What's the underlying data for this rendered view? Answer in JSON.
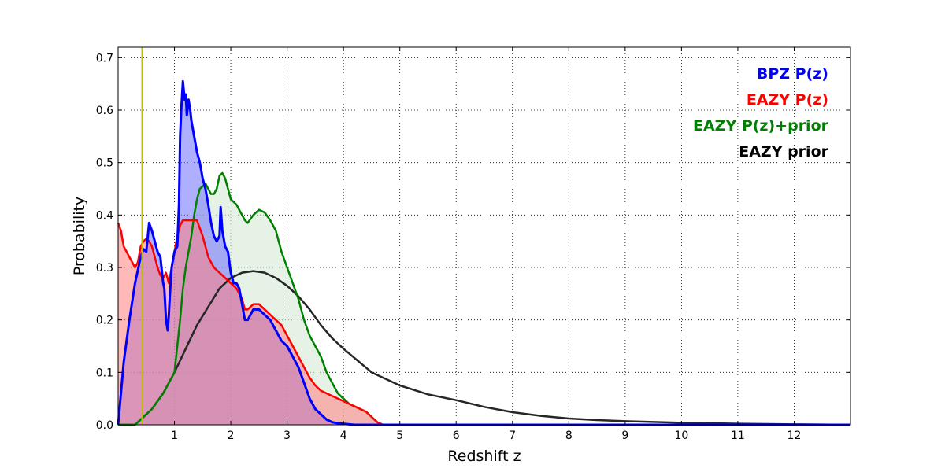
{
  "chart_data": {
    "type": "area",
    "title": "",
    "xlabel": "Redshift z",
    "ylabel": "Probability",
    "xlim": [
      0,
      13
    ],
    "ylim": [
      0,
      0.72
    ],
    "grid": true,
    "legend_position": "top-right",
    "x_ticks": [
      1,
      2,
      3,
      4,
      5,
      6,
      7,
      8,
      9,
      10,
      11,
      12
    ],
    "y_ticks": [
      0.0,
      0.1,
      0.2,
      0.3,
      0.4,
      0.5,
      0.6,
      0.7
    ],
    "y_tick_labels": [
      "0.0",
      "0.1",
      "0.2",
      "0.3",
      "0.4",
      "0.5",
      "0.6",
      "0.7"
    ],
    "vline": {
      "x": 0.43,
      "color": "#bfbf00"
    },
    "series": [
      {
        "name": "BPZ P(z)",
        "color": "#0000ff",
        "fill": "#6e6eff",
        "filled": true,
        "x": [
          0,
          0.05,
          0.1,
          0.2,
          0.3,
          0.4,
          0.45,
          0.5,
          0.55,
          0.6,
          0.65,
          0.7,
          0.75,
          0.8,
          0.82,
          0.85,
          0.88,
          0.9,
          0.92,
          0.95,
          1.0,
          1.05,
          1.08,
          1.1,
          1.12,
          1.15,
          1.18,
          1.2,
          1.22,
          1.25,
          1.28,
          1.3,
          1.35,
          1.4,
          1.45,
          1.5,
          1.55,
          1.6,
          1.65,
          1.7,
          1.75,
          1.8,
          1.82,
          1.85,
          1.9,
          1.95,
          2.0,
          2.05,
          2.1,
          2.15,
          2.2,
          2.25,
          2.3,
          2.4,
          2.5,
          2.6,
          2.7,
          2.8,
          2.9,
          3.0,
          3.1,
          3.2,
          3.3,
          3.4,
          3.5,
          3.6,
          3.7,
          3.8,
          3.9,
          4.0,
          4.1,
          4.2,
          4.3,
          4.4,
          4.5,
          4.6,
          4.7,
          5.0,
          13.0
        ],
        "y": [
          0.0,
          0.06,
          0.12,
          0.2,
          0.27,
          0.32,
          0.335,
          0.33,
          0.385,
          0.37,
          0.35,
          0.33,
          0.32,
          0.27,
          0.26,
          0.2,
          0.18,
          0.21,
          0.25,
          0.3,
          0.33,
          0.34,
          0.42,
          0.55,
          0.6,
          0.655,
          0.62,
          0.63,
          0.59,
          0.62,
          0.6,
          0.58,
          0.55,
          0.52,
          0.5,
          0.47,
          0.45,
          0.42,
          0.385,
          0.36,
          0.35,
          0.36,
          0.415,
          0.37,
          0.34,
          0.33,
          0.29,
          0.27,
          0.27,
          0.26,
          0.23,
          0.2,
          0.2,
          0.22,
          0.22,
          0.21,
          0.2,
          0.18,
          0.16,
          0.15,
          0.13,
          0.11,
          0.08,
          0.05,
          0.03,
          0.02,
          0.01,
          0.005,
          0.003,
          0.002,
          0.001,
          0.0,
          0.0,
          0.0,
          0.0,
          0.0,
          0.0,
          0.0,
          0.0
        ]
      },
      {
        "name": "EAZY P(z)",
        "color": "#ff0000",
        "fill": "#ff8080",
        "filled": true,
        "x": [
          0,
          0.05,
          0.1,
          0.2,
          0.3,
          0.35,
          0.4,
          0.45,
          0.5,
          0.55,
          0.6,
          0.65,
          0.7,
          0.75,
          0.8,
          0.85,
          0.9,
          0.95,
          1.0,
          1.05,
          1.1,
          1.15,
          1.2,
          1.3,
          1.4,
          1.45,
          1.5,
          1.55,
          1.6,
          1.7,
          1.8,
          1.9,
          2.0,
          2.1,
          2.2,
          2.25,
          2.3,
          2.4,
          2.5,
          2.6,
          2.7,
          2.8,
          2.9,
          3.0,
          3.1,
          3.2,
          3.3,
          3.4,
          3.5,
          3.6,
          3.7,
          3.8,
          3.9,
          4.0,
          4.1,
          4.2,
          4.3,
          4.4,
          4.5,
          4.6,
          4.7,
          5.0,
          13.0
        ],
        "y": [
          0.385,
          0.37,
          0.34,
          0.32,
          0.3,
          0.31,
          0.34,
          0.35,
          0.355,
          0.35,
          0.34,
          0.32,
          0.3,
          0.285,
          0.28,
          0.29,
          0.27,
          0.3,
          0.33,
          0.36,
          0.38,
          0.39,
          0.39,
          0.39,
          0.39,
          0.375,
          0.36,
          0.34,
          0.32,
          0.3,
          0.29,
          0.28,
          0.27,
          0.26,
          0.24,
          0.22,
          0.22,
          0.23,
          0.23,
          0.22,
          0.21,
          0.2,
          0.19,
          0.17,
          0.15,
          0.13,
          0.11,
          0.09,
          0.075,
          0.065,
          0.06,
          0.055,
          0.05,
          0.045,
          0.04,
          0.035,
          0.03,
          0.025,
          0.015,
          0.005,
          0.0,
          0.0,
          0.0
        ]
      },
      {
        "name": "EAZY P(z)+prior",
        "color": "#008000",
        "fill": "#d6ead6",
        "filled": true,
        "x": [
          0,
          0.3,
          0.35,
          0.4,
          0.45,
          0.5,
          0.55,
          0.6,
          0.7,
          0.8,
          0.9,
          1.0,
          1.1,
          1.15,
          1.2,
          1.25,
          1.3,
          1.35,
          1.4,
          1.45,
          1.5,
          1.55,
          1.6,
          1.65,
          1.7,
          1.75,
          1.8,
          1.85,
          1.9,
          1.95,
          2.0,
          2.1,
          2.2,
          2.25,
          2.3,
          2.4,
          2.5,
          2.6,
          2.7,
          2.8,
          2.9,
          3.0,
          3.1,
          3.2,
          3.3,
          3.4,
          3.5,
          3.6,
          3.7,
          3.8,
          3.9,
          4.0,
          4.1,
          4.2,
          4.3,
          4.4,
          4.5,
          4.6,
          4.7,
          5.0,
          13.0
        ],
        "y": [
          0.0,
          0.0,
          0.005,
          0.01,
          0.015,
          0.02,
          0.025,
          0.03,
          0.045,
          0.06,
          0.08,
          0.1,
          0.2,
          0.26,
          0.3,
          0.33,
          0.36,
          0.4,
          0.43,
          0.45,
          0.455,
          0.46,
          0.45,
          0.44,
          0.44,
          0.45,
          0.475,
          0.48,
          0.47,
          0.45,
          0.43,
          0.42,
          0.4,
          0.39,
          0.385,
          0.4,
          0.41,
          0.405,
          0.39,
          0.37,
          0.33,
          0.3,
          0.27,
          0.24,
          0.2,
          0.17,
          0.15,
          0.13,
          0.1,
          0.08,
          0.06,
          0.05,
          0.04,
          0.035,
          0.03,
          0.025,
          0.015,
          0.005,
          0.0,
          0.0,
          0.0
        ]
      },
      {
        "name": "EAZY prior",
        "color": "#262626",
        "fill": null,
        "filled": false,
        "x": [
          0,
          0.3,
          0.4,
          0.5,
          0.6,
          0.7,
          0.8,
          0.9,
          1.0,
          1.2,
          1.4,
          1.6,
          1.8,
          2.0,
          2.2,
          2.4,
          2.6,
          2.8,
          3.0,
          3.2,
          3.4,
          3.6,
          3.8,
          4.0,
          4.5,
          5.0,
          5.5,
          6.0,
          6.5,
          7.0,
          7.5,
          8.0,
          8.5,
          9.0,
          10.0,
          11.0,
          12.0,
          13.0
        ],
        "y": [
          0.0,
          0.0,
          0.01,
          0.02,
          0.03,
          0.045,
          0.06,
          0.08,
          0.1,
          0.145,
          0.19,
          0.225,
          0.26,
          0.28,
          0.29,
          0.293,
          0.29,
          0.28,
          0.265,
          0.245,
          0.22,
          0.19,
          0.165,
          0.145,
          0.1,
          0.075,
          0.058,
          0.047,
          0.034,
          0.024,
          0.017,
          0.012,
          0.009,
          0.007,
          0.004,
          0.002,
          0.001,
          0.0
        ]
      }
    ],
    "legend": [
      {
        "label": "BPZ P(z)",
        "color": "#0000ff"
      },
      {
        "label": "EAZY P(z)",
        "color": "#ff0000"
      },
      {
        "label": "EAZY P(z)+prior",
        "color": "#008000"
      },
      {
        "label": "EAZY prior",
        "color": "#000000"
      }
    ]
  }
}
